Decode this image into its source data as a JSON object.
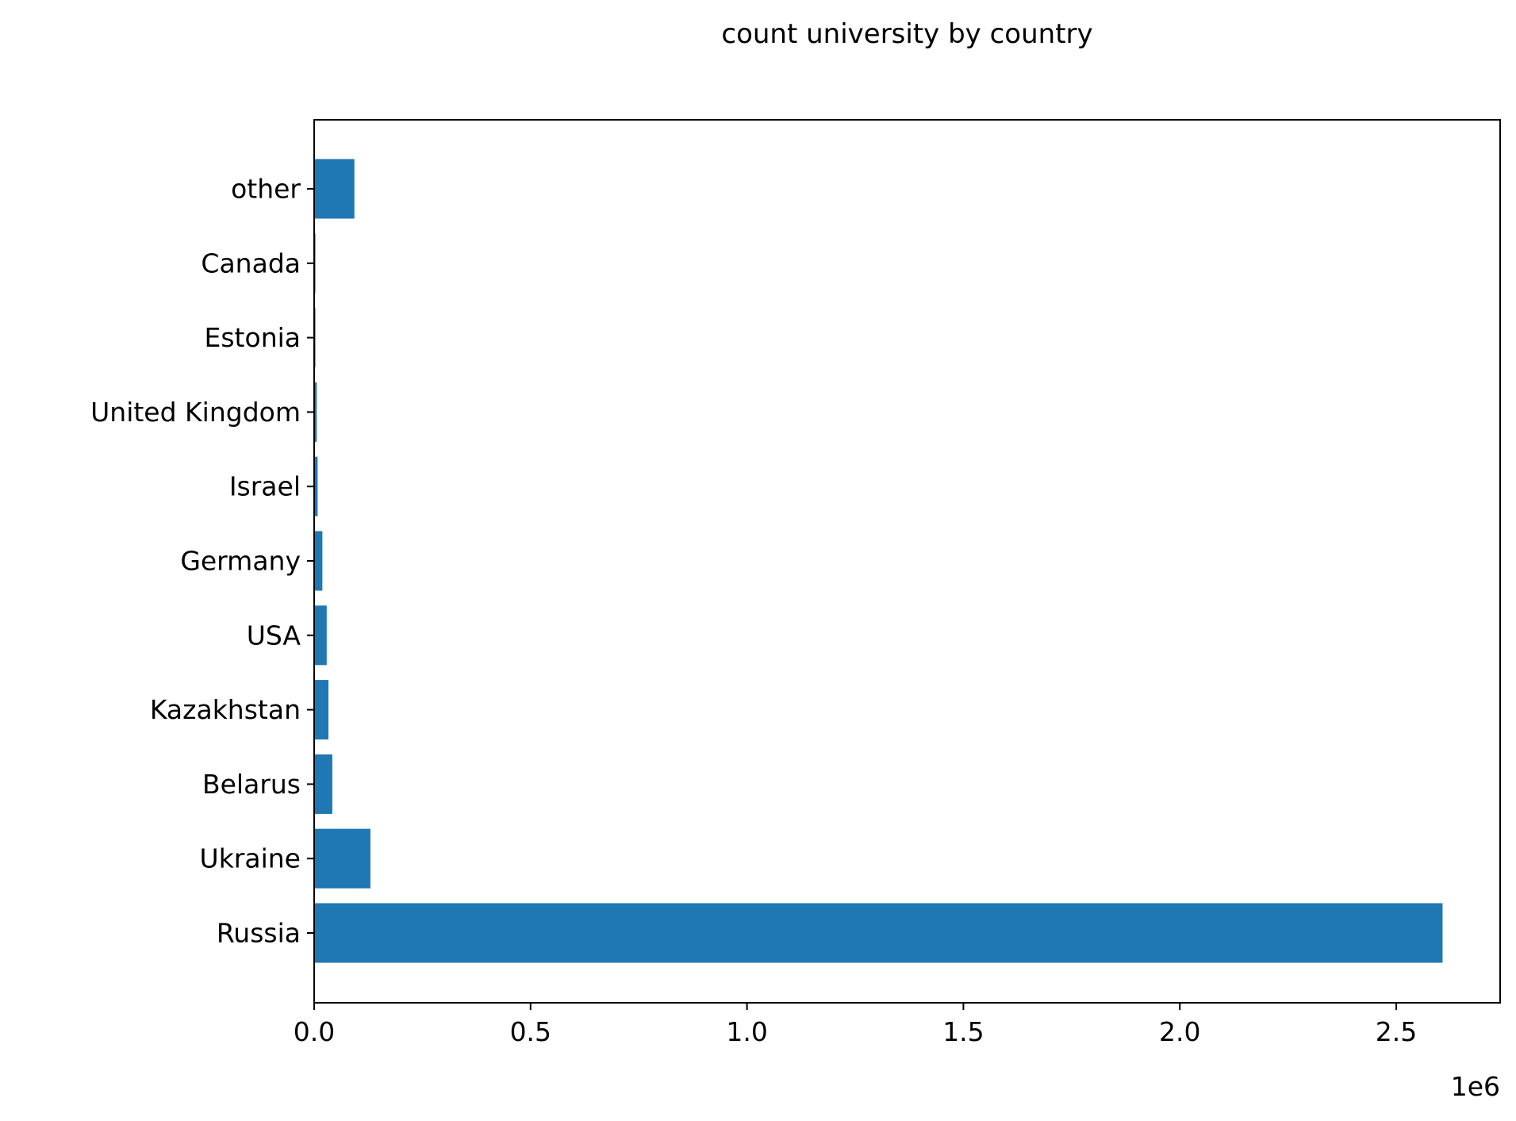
{
  "chart_data": {
    "type": "bar",
    "orientation": "horizontal",
    "title": "count university by country",
    "xlabel": "",
    "ylabel": "",
    "x_offset_label": "1e6",
    "categories": [
      "Russia",
      "Ukraine",
      "Belarus",
      "Kazakhstan",
      "USA",
      "Germany",
      "Israel",
      "United Kingdom",
      "Estonia",
      "Canada",
      "other"
    ],
    "values": [
      2607000,
      130000,
      42000,
      33000,
      29000,
      19000,
      8000,
      6000,
      3000,
      3000,
      93000
    ],
    "x_ticks": [
      0,
      500000,
      1000000,
      1500000,
      2000000,
      2500000
    ],
    "x_tick_labels": [
      "0.0",
      "0.5",
      "1.0",
      "1.5",
      "2.0",
      "2.5"
    ],
    "xlim": [
      0,
      2740000
    ],
    "bar_color": "#1f77b4",
    "grid": false,
    "legend": "none"
  }
}
